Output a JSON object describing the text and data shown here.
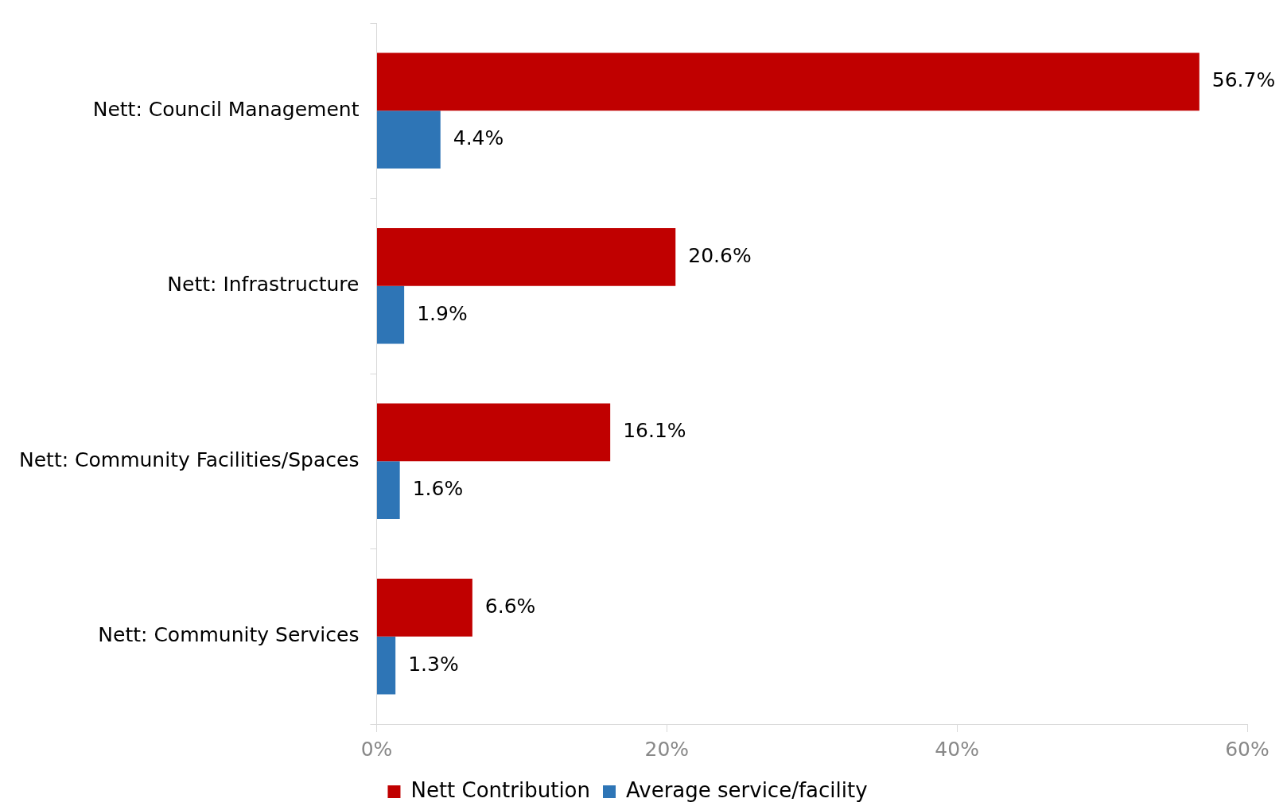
{
  "chart_data": {
    "type": "bar",
    "orientation": "horizontal",
    "categories": [
      "Nett: Council Management",
      "Nett: Infrastructure",
      "Nett: Community Facilities/Spaces",
      "Nett: Community Services"
    ],
    "series": [
      {
        "name": "Nett Contribution",
        "color": "#c00000",
        "values": [
          56.7,
          20.6,
          16.1,
          6.6
        ],
        "value_labels": [
          "56.7%",
          "20.6%",
          "16.1%",
          "6.6%"
        ]
      },
      {
        "name": "Average service/facility",
        "color": "#2e75b6",
        "values": [
          4.4,
          1.9,
          1.6,
          1.3
        ],
        "value_labels": [
          "4.4%",
          "1.9%",
          "1.6%",
          "1.3%"
        ]
      }
    ],
    "xlim": [
      0,
      60
    ],
    "xticks": [
      {
        "value": 0,
        "label": "0%"
      },
      {
        "value": 20,
        "label": "20%"
      },
      {
        "value": 40,
        "label": "40%"
      },
      {
        "value": 60,
        "label": "60%"
      }
    ],
    "legend": "bottom"
  }
}
